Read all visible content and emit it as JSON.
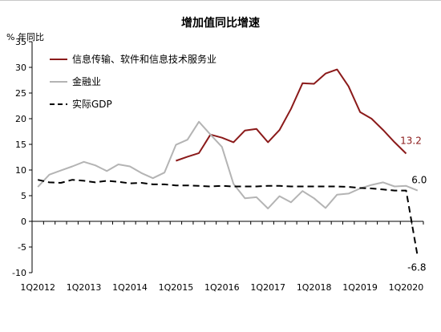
{
  "chart_data": {
    "type": "line",
    "title": "增加值同比增速",
    "ylabel": "% 年同比",
    "ylim": [
      -10,
      35
    ],
    "yticks": [
      -10,
      -5,
      0,
      5,
      10,
      15,
      20,
      25,
      30,
      35
    ],
    "x_tick_labels": [
      "1Q2012",
      "1Q2013",
      "1Q2014",
      "1Q2015",
      "1Q2016",
      "1Q2017",
      "1Q2018",
      "1Q2019",
      "1Q2020"
    ],
    "legend_position": "top-left",
    "grid": false,
    "series": [
      {
        "name": "信息传输、软件和信息技术服务业",
        "color": "#8b1a1a",
        "style": "solid",
        "start_index": 12,
        "values": [
          11.8,
          12.6,
          13.3,
          16.9,
          16.3,
          15.4,
          17.7,
          18.0,
          15.4,
          17.8,
          21.9,
          26.9,
          26.8,
          28.8,
          29.6,
          26.3,
          21.3,
          20.0,
          17.8,
          15.4,
          13.2
        ]
      },
      {
        "name": "金融业",
        "color": "#b4b4b4",
        "style": "solid",
        "start_index": 0,
        "values": [
          6.7,
          9.1,
          9.9,
          10.7,
          11.6,
          10.9,
          9.8,
          11.1,
          10.7,
          9.4,
          8.4,
          9.5,
          14.9,
          15.9,
          19.4,
          16.9,
          14.5,
          7.3,
          4.5,
          4.7,
          2.5,
          4.9,
          3.7,
          5.9,
          4.5,
          2.6,
          5.2,
          5.4,
          6.4,
          7.1,
          7.6,
          6.8,
          6.9,
          6.0
        ]
      },
      {
        "name": "实际GDP",
        "color": "#000000",
        "style": "dashed",
        "start_index": 0,
        "values": [
          8.1,
          7.6,
          7.5,
          8.1,
          7.9,
          7.6,
          7.9,
          7.7,
          7.4,
          7.5,
          7.2,
          7.2,
          7.0,
          7.0,
          6.9,
          6.8,
          6.9,
          6.8,
          6.8,
          6.8,
          6.9,
          6.9,
          6.8,
          6.8,
          6.8,
          6.8,
          6.8,
          6.7,
          6.5,
          6.4,
          6.2,
          6.0,
          6.0,
          -6.8
        ]
      }
    ],
    "annotations": [
      {
        "text": "13.2",
        "series": 0,
        "color": "#8b1a1a"
      },
      {
        "text": "6.0",
        "series": 1,
        "color": "#000000"
      },
      {
        "text": "-6.8",
        "series": 2,
        "color": "#000000"
      }
    ]
  }
}
